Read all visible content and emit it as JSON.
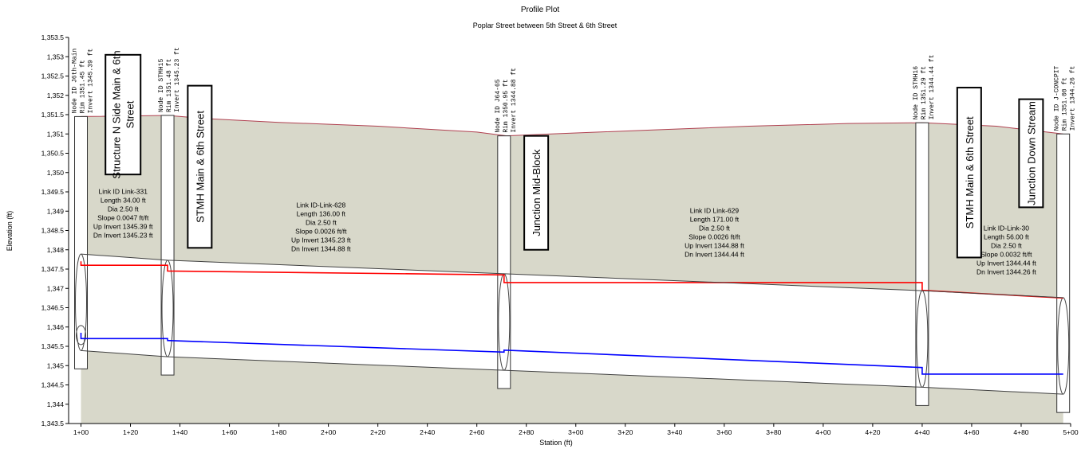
{
  "chart_data": {
    "type": "line",
    "title": "Profile Plot",
    "subtitle": "Poplar Street between 5th Street & 6th Street",
    "xlabel": "Station (ft)",
    "ylabel": "Elevation (ft)",
    "xlim": [
      95,
      500
    ],
    "ylim": [
      1343.5,
      1353.5
    ],
    "x_ticks": [
      100,
      120,
      140,
      160,
      180,
      200,
      220,
      240,
      260,
      280,
      300,
      320,
      340,
      360,
      380,
      400,
      420,
      440,
      460,
      480,
      500
    ],
    "x_tick_labels": [
      "1+00",
      "1+20",
      "1+40",
      "1+60",
      "1+80",
      "2+00",
      "2+20",
      "2+40",
      "2+60",
      "2+80",
      "3+00",
      "3+20",
      "3+40",
      "3+60",
      "3+80",
      "4+00",
      "4+20",
      "4+40",
      "4+60",
      "4+80",
      "5+00"
    ],
    "y_ticks": [
      1343.5,
      1344,
      1344.5,
      1345,
      1345.5,
      1346,
      1346.5,
      1347,
      1347.5,
      1348,
      1348.5,
      1349,
      1349.5,
      1350,
      1350.5,
      1351,
      1351.5,
      1352,
      1352.5,
      1353,
      1353.5
    ],
    "y_tick_labels": [
      "1,343.5",
      "1,344",
      "1,344.5",
      "1,345",
      "1,345.5",
      "1,346",
      "1,346.5",
      "1,347",
      "1,347.5",
      "1,348",
      "1,348.5",
      "1,349",
      "1,349.5",
      "1,350",
      "1,350.5",
      "1,351",
      "1,351.5",
      "1,352",
      "1,352.5",
      "1,353",
      "1,353.5"
    ],
    "grid": false,
    "ground_surface": {
      "x": [
        100,
        135,
        150,
        180,
        220,
        260,
        272,
        290,
        330,
        370,
        410,
        440,
        470,
        497
      ],
      "y": [
        1351.45,
        1351.48,
        1351.4,
        1351.3,
        1351.2,
        1351.05,
        1350.95,
        1351.0,
        1351.1,
        1351.2,
        1351.27,
        1351.29,
        1351.2,
        1351.0
      ]
    },
    "series": [
      {
        "color": "#ff0000",
        "x": [
          100,
          100,
          135,
          135,
          271,
          271,
          440,
          440,
          497
        ],
        "y": [
          1347.7,
          1347.6,
          1347.6,
          1347.45,
          1347.35,
          1347.15,
          1347.15,
          1346.95,
          1346.75
        ]
      },
      {
        "color": "#0000ff",
        "x": [
          100,
          100,
          135,
          135,
          271,
          271,
          440,
          440,
          497
        ],
        "y": [
          1345.85,
          1345.7,
          1345.7,
          1345.65,
          1345.35,
          1345.4,
          1344.95,
          1344.78,
          1344.78
        ]
      },
      {
        "color": "#404040",
        "x": [
          100,
          135,
          271,
          440,
          497
        ],
        "y": [
          1347.89,
          1347.73,
          1347.38,
          1346.94,
          1346.76
        ]
      },
      {
        "color": "#404040",
        "x": [
          100,
          135,
          271,
          440,
          497
        ],
        "y": [
          1345.39,
          1345.23,
          1344.88,
          1344.44,
          1344.26
        ]
      }
    ],
    "nodes": [
      {
        "x": 100,
        "rim": 1351.45,
        "invert": 1345.39,
        "labels": [
          "Node ID J6th-Main",
          "Rim 1351.45 ft",
          "Invert 1345.39 ft"
        ]
      },
      {
        "x": 135,
        "rim": 1351.48,
        "invert": 1345.23,
        "labels": [
          "Node ID STMH15",
          "Rim 1351.48 ft",
          "Invert 1345.23 ft"
        ]
      },
      {
        "x": 271,
        "rim": 1350.95,
        "invert": 1344.88,
        "labels": [
          "Node ID J64-65",
          "Rim 1350.95 ft",
          "Invert 1344.88 ft"
        ]
      },
      {
        "x": 440,
        "rim": 1351.29,
        "invert": 1344.44,
        "labels": [
          "Node ID STMH16",
          "Rim 1351.29 ft",
          "Invert 1344.44 ft"
        ]
      },
      {
        "x": 497,
        "rim": 1351.0,
        "invert": 1344.26,
        "labels": [
          "Node ID J-CONCPIT",
          "Rim 1351.00 ft",
          "Invert 1344.26 ft"
        ]
      }
    ],
    "links": [
      {
        "x": 117,
        "y": 1349.45,
        "lines": [
          "Link ID Link-331",
          "Length 34.00 ft",
          "Dia 2.50 ft",
          "Slope 0.0047 ft/ft",
          "Up Invert 1345.39 ft",
          "Dn Invert 1345.23 ft"
        ]
      },
      {
        "x": 197,
        "y": 1349.1,
        "lines": [
          "Link ID-Link-628",
          "Length 136.00 ft",
          "Dia 2.50 ft",
          "Slope 0.0026 ft/ft",
          "Up Invert 1345.23 ft",
          "Dn Invert 1344.88 ft"
        ]
      },
      {
        "x": 356,
        "y": 1348.95,
        "lines": [
          "Link ID Link-629",
          "Length 171.00 ft",
          "Dia 2.50 ft",
          "Slope 0.0026 ft/ft",
          "Up Invert 1344.88 ft",
          "Dn Invert 1344.44 ft"
        ]
      },
      {
        "x": 474,
        "y": 1348.5,
        "lines": [
          "Link ID-Link-30",
          "Length 56.00 ft",
          "Dia 2.50 ft",
          "Slope 0.0032 ft/ft",
          "Up Invert 1344.44 ft",
          "Dn Invert 1344.26 ft"
        ]
      }
    ],
    "annotations": [
      {
        "text": "Structure N Side Main & 6th Street",
        "lines": [
          "Structure N Side Main & 6th",
          "Street"
        ],
        "x": 117,
        "y": 1353.05,
        "y_bottom": 1349.95
      },
      {
        "text": "STMH Main & 6th Street",
        "lines": [
          "STMH Main & 6th Street"
        ],
        "x": 148,
        "y": 1352.25,
        "y_bottom": 1348.05
      },
      {
        "text": "Junction Mid-Block",
        "lines": [
          "Junction Mid-Block"
        ],
        "x": 284,
        "y": 1350.95,
        "y_bottom": 1348.0
      },
      {
        "text": "STMH Main & 6th Street",
        "lines": [
          "STMH Main & 6th Street"
        ],
        "x": 459,
        "y": 1352.2,
        "y_bottom": 1347.8
      },
      {
        "text": "Junction Down Stream",
        "lines": [
          "Junction Down Stream"
        ],
        "x": 484,
        "y": 1351.9,
        "y_bottom": 1349.1
      }
    ]
  }
}
